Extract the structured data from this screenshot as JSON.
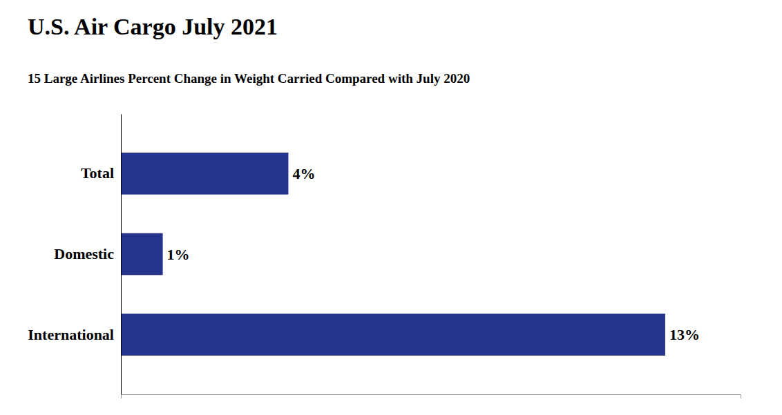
{
  "chart_data": {
    "type": "bar",
    "orientation": "horizontal",
    "title": "U.S. Air Cargo July 2021",
    "subtitle": "15 Large Airlines Percent Change in Weight Carried Compared with July 2020",
    "categories": [
      "International",
      "Domestic",
      "Total"
    ],
    "values": [
      13,
      1,
      4
    ],
    "value_labels": [
      "13%",
      "1%",
      "4%"
    ],
    "data_labels": true,
    "color": "#27348B",
    "xlim": [
      0,
      14.8
    ],
    "tick_labels": "y",
    "grid": false
  }
}
